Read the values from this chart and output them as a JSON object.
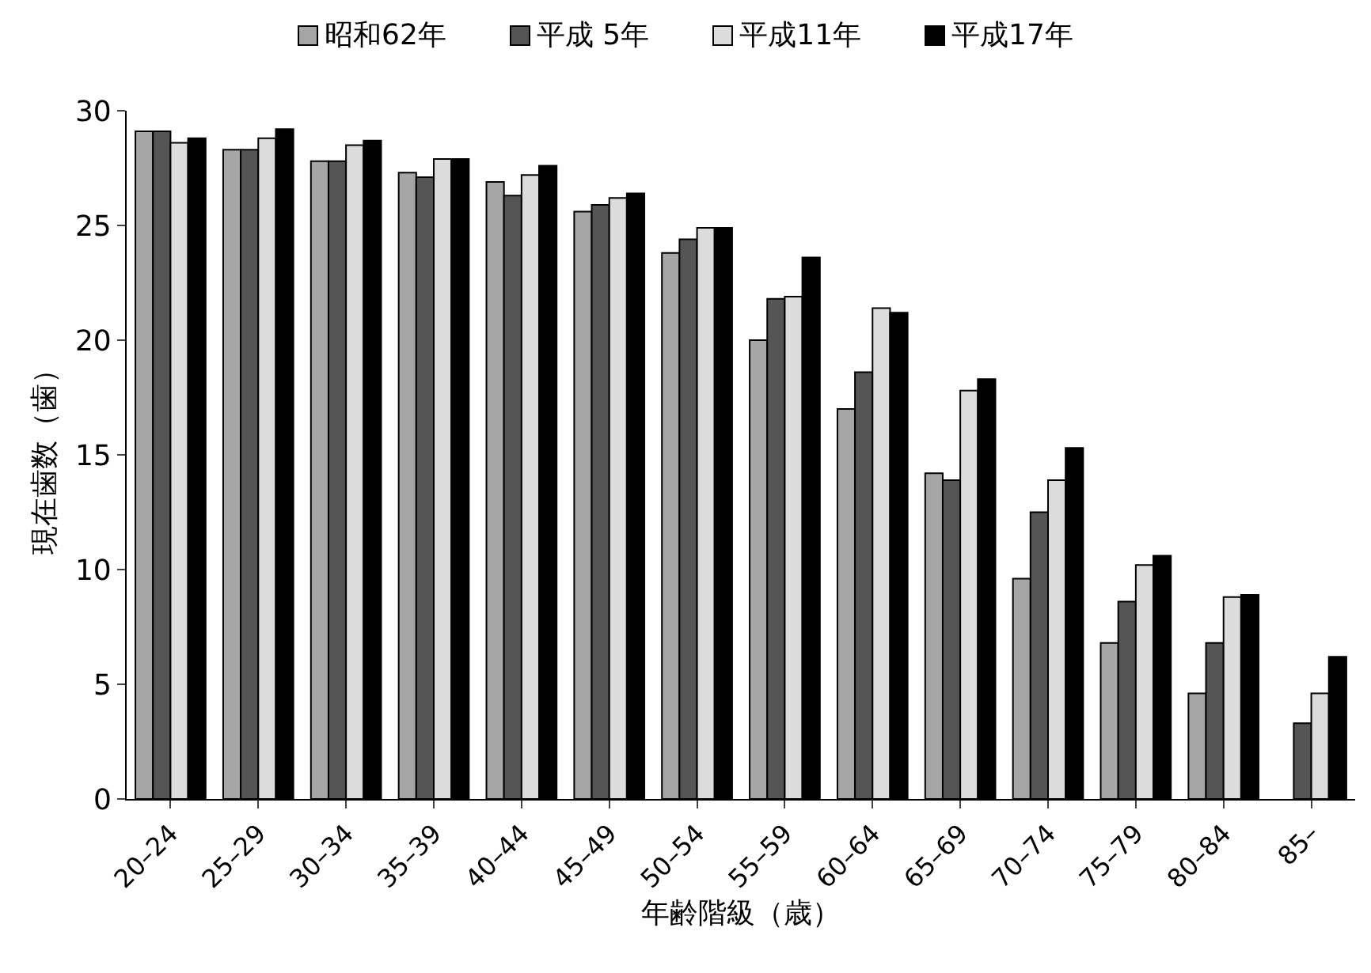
{
  "chart_data": {
    "type": "bar",
    "xlabel": "年齢階級（歳）",
    "ylabel": "現在歯数（歯）",
    "categories": [
      "20–24",
      "25–29",
      "30–34",
      "35–39",
      "40–44",
      "45–49",
      "50–54",
      "55–59",
      "60–64",
      "65–69",
      "70–74",
      "75–79",
      "80–84",
      "85–"
    ],
    "series": [
      {
        "name": "昭和62年",
        "color": "#a6a6a6",
        "values": [
          29.1,
          28.3,
          27.8,
          27.3,
          26.9,
          25.6,
          23.8,
          20.0,
          17.0,
          14.2,
          9.6,
          6.8,
          4.6,
          null
        ]
      },
      {
        "name": "平成 5年",
        "color": "#555555",
        "values": [
          29.1,
          28.3,
          27.8,
          27.1,
          26.3,
          25.9,
          24.4,
          21.8,
          18.6,
          13.9,
          12.5,
          8.6,
          6.8,
          3.3
        ]
      },
      {
        "name": "平成11年",
        "color": "#dcdcdc",
        "values": [
          28.6,
          28.8,
          28.5,
          27.9,
          27.2,
          26.2,
          24.9,
          21.9,
          21.4,
          17.8,
          13.9,
          10.2,
          8.8,
          4.6
        ]
      },
      {
        "name": "平成17年",
        "color": "#000000",
        "values": [
          28.8,
          29.2,
          28.7,
          27.9,
          27.6,
          26.4,
          24.9,
          23.6,
          21.2,
          18.3,
          15.3,
          10.6,
          8.9,
          6.2
        ]
      }
    ],
    "ylim": [
      0,
      30
    ],
    "yticks": [
      0,
      5,
      10,
      15,
      20,
      25,
      30
    ],
    "grid": false,
    "legend": "top"
  }
}
